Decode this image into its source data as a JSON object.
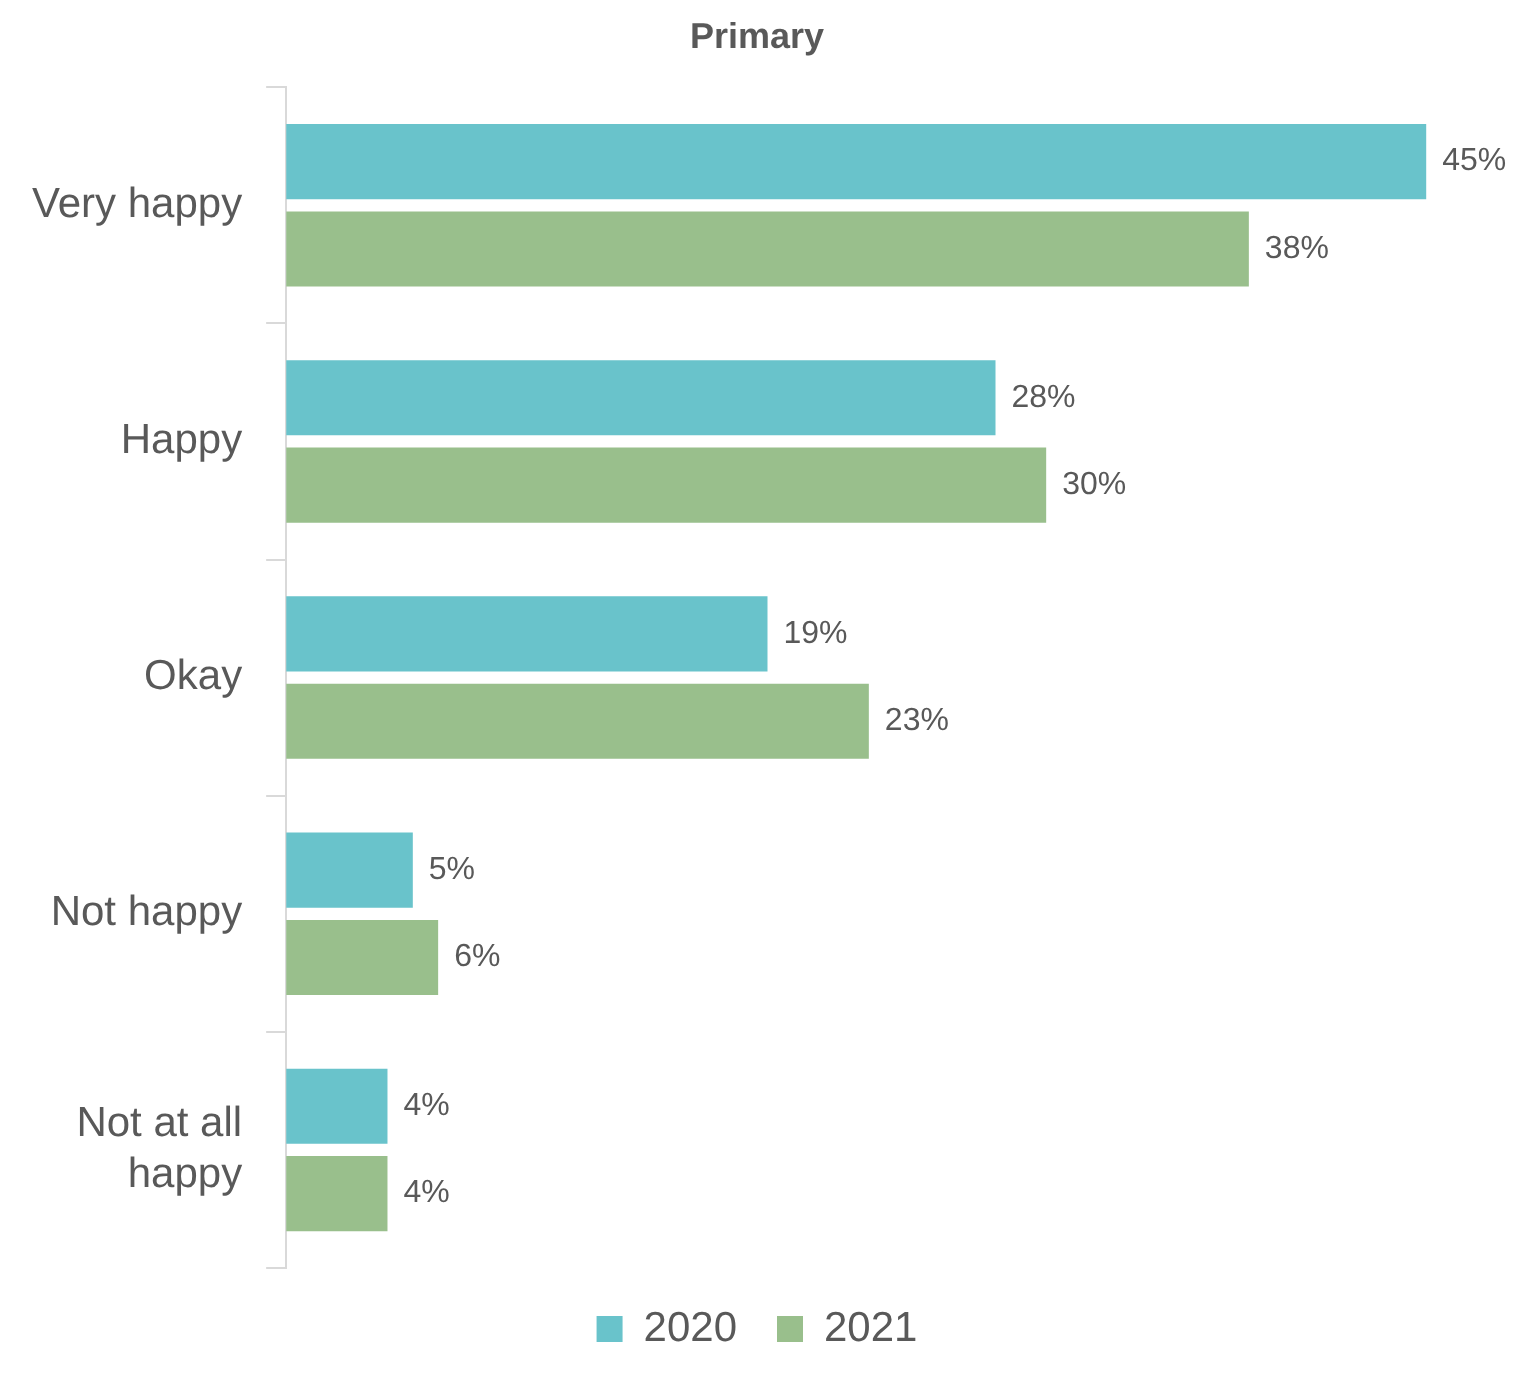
{
  "chart_data": {
    "type": "bar",
    "orientation": "horizontal",
    "title": "Primary",
    "categories": [
      "Very happy",
      "Happy",
      "Okay",
      "Not happy",
      "Not at all happy"
    ],
    "series": [
      {
        "name": "2020",
        "color": "#69c3cb",
        "values": [
          45,
          28,
          19,
          5,
          4
        ],
        "value_labels": [
          "45%",
          "28%",
          "19%",
          "5%",
          "4%"
        ]
      },
      {
        "name": "2021",
        "color": "#99bf8c",
        "values": [
          38,
          30,
          23,
          6,
          4
        ],
        "value_labels": [
          "38%",
          "30%",
          "23%",
          "6%",
          "4%"
        ]
      }
    ],
    "legend": "bottom"
  }
}
